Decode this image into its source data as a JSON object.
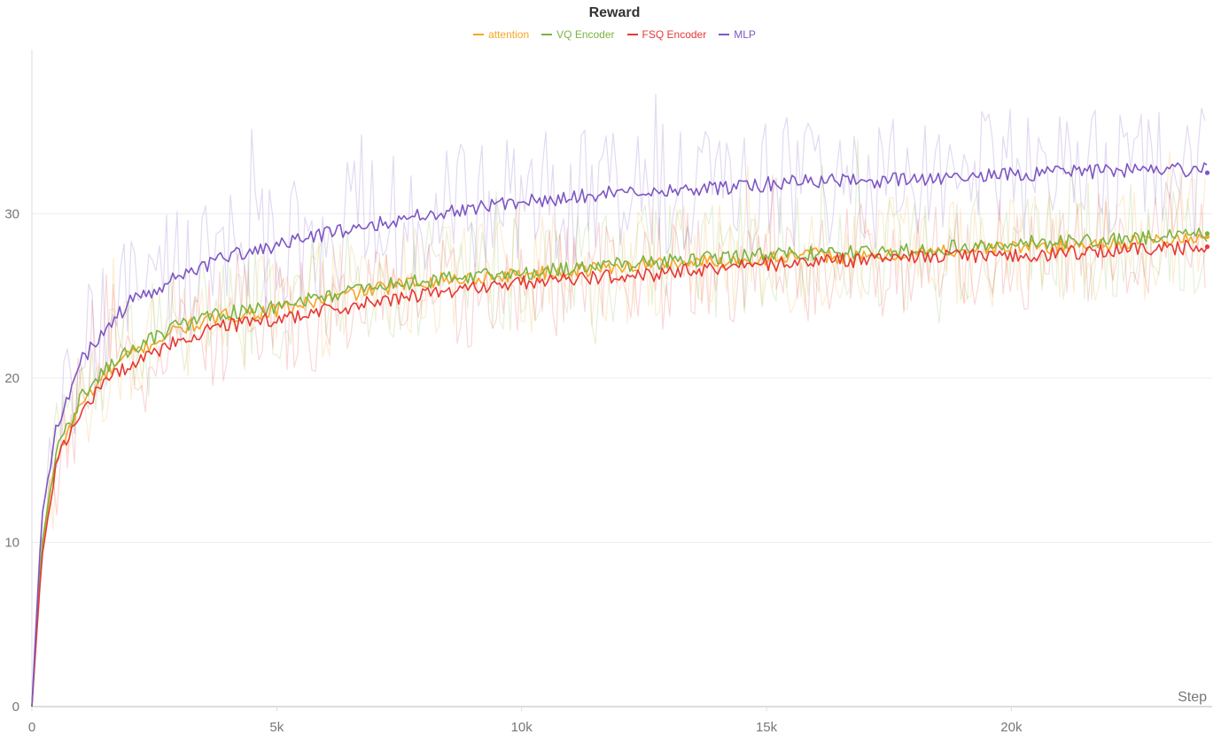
{
  "chart_data": {
    "type": "line",
    "title": "Reward",
    "xlabel": "Step",
    "ylabel": "",
    "xlim": [
      0,
      24100
    ],
    "ylim": [
      0,
      40
    ],
    "x_ticks": [
      {
        "value": 0,
        "label": "0"
      },
      {
        "value": 5000,
        "label": "5k"
      },
      {
        "value": 10000,
        "label": "10k"
      },
      {
        "value": 15000,
        "label": "15k"
      },
      {
        "value": 20000,
        "label": "20k"
      }
    ],
    "y_ticks": [
      {
        "value": 0,
        "label": "0"
      },
      {
        "value": 10,
        "label": "10"
      },
      {
        "value": 20,
        "label": "20"
      },
      {
        "value": 30,
        "label": "30"
      }
    ],
    "grid": true,
    "legend_position": "top-center",
    "series": [
      {
        "name": "attention",
        "color": "#f5a623",
        "x": [
          0,
          200,
          500,
          1000,
          1500,
          2000,
          3000,
          4000,
          5000,
          6000,
          7000,
          8000,
          9000,
          10000,
          11000,
          12000,
          13000,
          14000,
          15000,
          16000,
          17000,
          18000,
          19000,
          20000,
          21000,
          22000,
          23000,
          24000
        ],
        "values": [
          0,
          9.5,
          15.2,
          18.4,
          20.2,
          21.4,
          23.0,
          23.8,
          24.1,
          24.8,
          25.4,
          25.9,
          26.1,
          26.3,
          26.5,
          26.8,
          27.0,
          27.1,
          27.3,
          27.5,
          27.3,
          27.6,
          27.8,
          28.0,
          28.0,
          28.2,
          28.4,
          28.5
        ],
        "final_point": 28.6
      },
      {
        "name": "VQ Encoder",
        "color": "#7cb342",
        "x": [
          0,
          200,
          500,
          1000,
          1500,
          2000,
          3000,
          4000,
          5000,
          6000,
          7000,
          8000,
          9000,
          10000,
          11000,
          12000,
          13000,
          14000,
          15000,
          16000,
          17000,
          18000,
          19000,
          20000,
          21000,
          22000,
          23000,
          24000
        ],
        "values": [
          0,
          9.8,
          15.5,
          18.8,
          20.5,
          21.7,
          23.2,
          24.0,
          24.3,
          25.0,
          25.6,
          25.9,
          26.2,
          26.4,
          26.7,
          26.9,
          27.1,
          27.3,
          27.5,
          27.6,
          27.7,
          27.8,
          28.0,
          28.2,
          28.3,
          28.4,
          28.6,
          28.7
        ],
        "final_point": 28.8
      },
      {
        "name": "FSQ Encoder",
        "color": "#e53935",
        "x": [
          0,
          200,
          500,
          1000,
          1500,
          2000,
          3000,
          4000,
          5000,
          6000,
          7000,
          8000,
          9000,
          10000,
          11000,
          12000,
          13000,
          14000,
          15000,
          16000,
          17000,
          18000,
          19000,
          20000,
          21000,
          22000,
          23000,
          24000
        ],
        "values": [
          0,
          9.0,
          14.8,
          18.0,
          19.8,
          20.8,
          22.3,
          23.2,
          23.6,
          24.1,
          24.6,
          25.1,
          25.5,
          25.8,
          26.0,
          26.2,
          26.4,
          26.7,
          26.9,
          27.1,
          27.2,
          27.4,
          27.4,
          27.5,
          27.6,
          27.8,
          27.9,
          28.0
        ],
        "final_point": 28.0
      },
      {
        "name": "MLP",
        "color": "#7e57c2",
        "x": [
          0,
          200,
          500,
          1000,
          1500,
          2000,
          3000,
          4000,
          5000,
          6000,
          7000,
          8000,
          9000,
          10000,
          11000,
          12000,
          13000,
          14000,
          15000,
          16000,
          17000,
          18000,
          19000,
          20000,
          21000,
          22000,
          23000,
          24000
        ],
        "values": [
          0,
          11.5,
          17.0,
          21.0,
          23.0,
          24.6,
          26.2,
          27.4,
          28.0,
          28.8,
          29.4,
          30.0,
          30.4,
          30.8,
          31.0,
          31.3,
          31.5,
          31.6,
          31.8,
          32.0,
          32.0,
          32.1,
          32.3,
          32.4,
          32.5,
          32.6,
          32.7,
          32.7
        ],
        "final_point": 32.5
      }
    ]
  }
}
